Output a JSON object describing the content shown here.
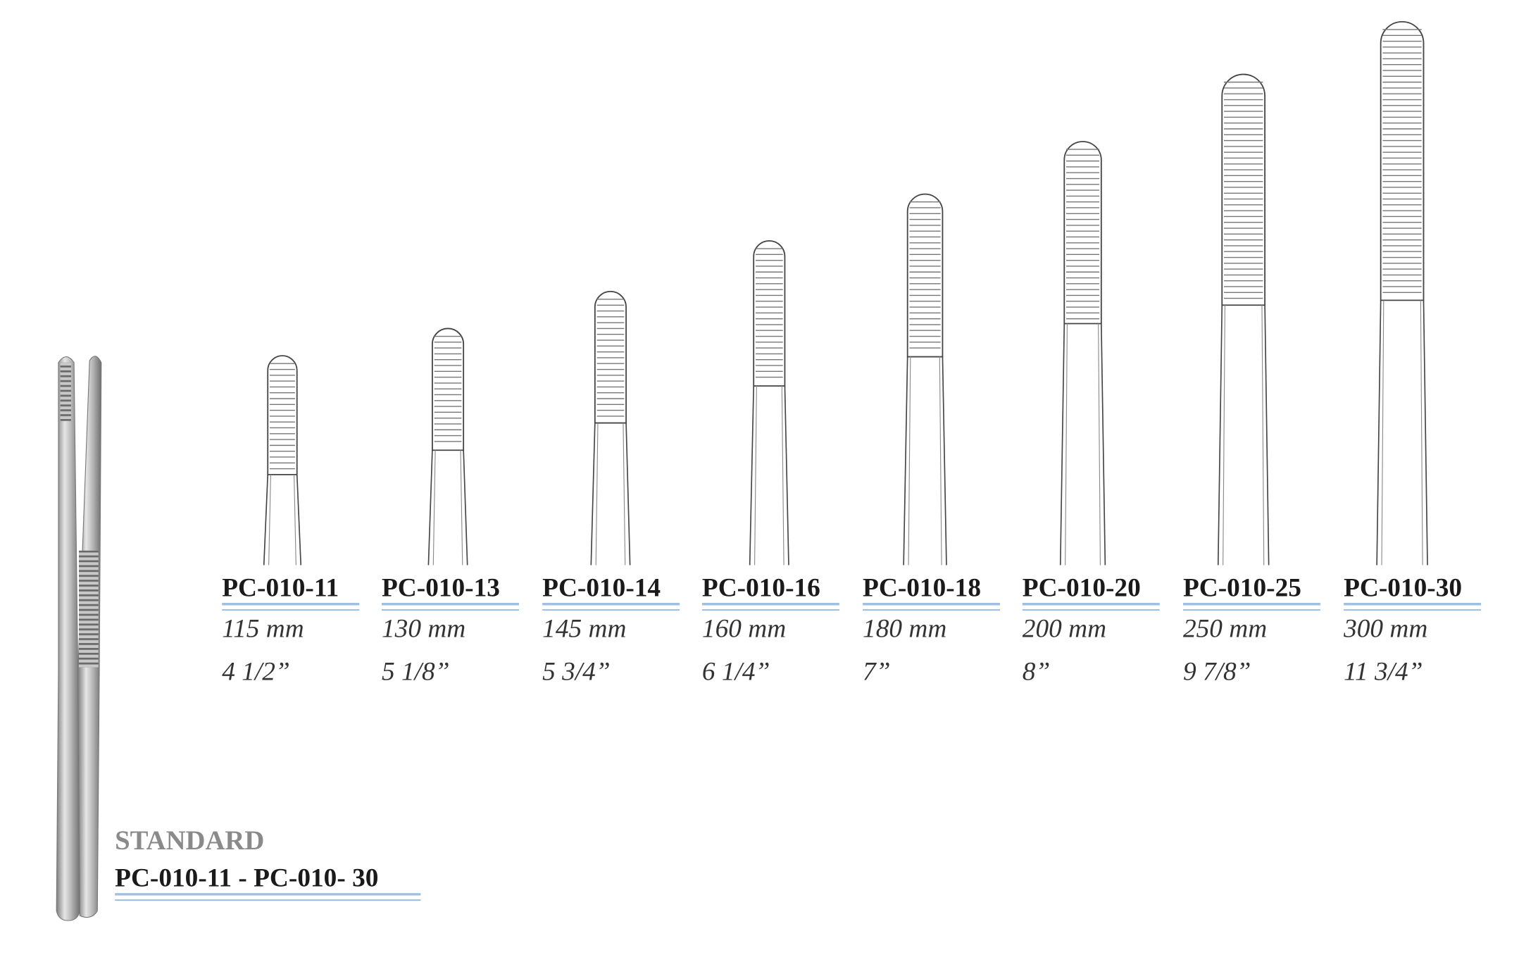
{
  "header": {
    "label": "STANDARD",
    "range": "PC-010-11 - PC-010- 30"
  },
  "products": [
    {
      "code": "PC-010-11",
      "mm": "115 mm",
      "inch": "4 1/2”"
    },
    {
      "code": "PC-010-13",
      "mm": "130 mm",
      "inch": "5 1/8”"
    },
    {
      "code": "PC-010-14",
      "mm": "145 mm",
      "inch": "5 3/4”"
    },
    {
      "code": "PC-010-16",
      "mm": "160 mm",
      "inch": "6 1/4”"
    },
    {
      "code": "PC-010-18",
      "mm": "180 mm",
      "inch": "7”"
    },
    {
      "code": "PC-010-20",
      "mm": "200 mm",
      "inch": "8”"
    },
    {
      "code": "PC-010-25",
      "mm": "250 mm",
      "inch": "9 7/8”"
    },
    {
      "code": "PC-010-30",
      "mm": "300 mm",
      "inch": "11 3/4”"
    }
  ]
}
